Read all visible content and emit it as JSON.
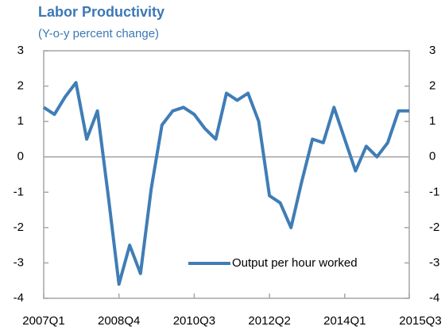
{
  "chart_data": {
    "type": "line",
    "title": "Labor Productivity",
    "subtitle": "(Y-o-y percent change)",
    "categories": [
      "2007Q1",
      null,
      null,
      null,
      null,
      null,
      null,
      "2008Q4",
      null,
      null,
      null,
      null,
      null,
      null,
      "2010Q3",
      null,
      null,
      null,
      null,
      null,
      null,
      "2012Q2",
      null,
      null,
      null,
      null,
      null,
      null,
      "2014Q1",
      null,
      null,
      null,
      null,
      null,
      "2015Q3"
    ],
    "series": [
      {
        "name": "Output per hour worked",
        "color": "#3f7db6",
        "values": [
          1.4,
          1.2,
          1.7,
          2.1,
          0.5,
          1.3,
          -1.1,
          -3.6,
          -2.5,
          -3.3,
          -0.9,
          0.9,
          1.3,
          1.4,
          1.2,
          0.8,
          0.5,
          1.8,
          1.6,
          1.8,
          1.0,
          -1.1,
          -1.3,
          -2.0,
          -0.7,
          0.5,
          0.4,
          1.4,
          0.5,
          -0.4,
          0.3,
          0.0,
          0.4,
          1.3,
          1.3
        ]
      }
    ],
    "ylim": [
      -4,
      3
    ],
    "yticks": [
      -4,
      -3,
      -2,
      -1,
      0,
      1,
      2,
      3
    ],
    "legend": "lower right"
  }
}
